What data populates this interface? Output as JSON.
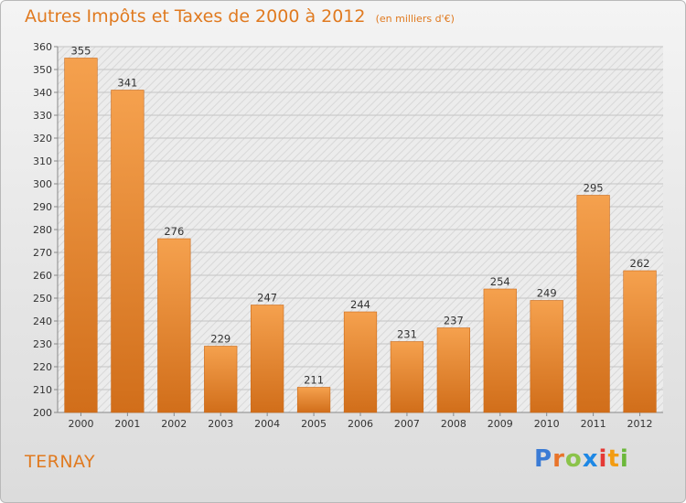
{
  "header": {
    "title": "Autres Impôts et Taxes de 2000 à 2012",
    "unit": "(en milliers d'€)"
  },
  "footer": {
    "commune": "TERNAY",
    "brand": "Proxiti",
    "brand_colors": [
      "#3a7bd5",
      "#e8742a",
      "#8bc34a",
      "#1e88e5",
      "#e53935",
      "#f39c12",
      "#6bb83a"
    ]
  },
  "colors": {
    "bar_light": "#f5a14e",
    "bar_dark": "#d16e1a",
    "accent": "#e07a20"
  },
  "chart_data": {
    "type": "bar",
    "title": "Autres Impôts et Taxes de 2000 à 2012",
    "subtitle": "(en milliers d'€)",
    "categories": [
      "2000",
      "2001",
      "2002",
      "2003",
      "2004",
      "2005",
      "2006",
      "2007",
      "2008",
      "2009",
      "2010",
      "2011",
      "2012"
    ],
    "values": [
      355,
      341,
      276,
      229,
      247,
      211,
      244,
      231,
      237,
      254,
      249,
      295,
      262
    ],
    "ylim": [
      200,
      360
    ],
    "ytick_step": 10,
    "grid": true
  }
}
